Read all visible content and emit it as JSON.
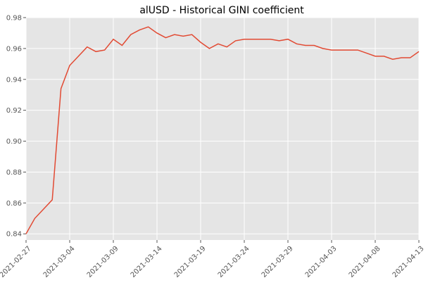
{
  "chart_data": {
    "type": "line",
    "title": "alUSD - Historical GINI coefficient",
    "xlabel": "",
    "ylabel": "",
    "grid": true,
    "line_color": "#e24a33",
    "background_color": "#e5e5e5",
    "grid_color": "#ffffff",
    "xlim": [
      "2021-02-27",
      "2021-04-13"
    ],
    "ylim": [
      0.836,
      0.98
    ],
    "x_ticks": [
      "2021-02-27",
      "2021-03-04",
      "2021-03-09",
      "2021-03-14",
      "2021-03-19",
      "2021-03-24",
      "2021-03-29",
      "2021-04-03",
      "2021-04-08",
      "2021-04-13"
    ],
    "y_ticks": [
      "0.84",
      "0.86",
      "0.88",
      "0.90",
      "0.92",
      "0.94",
      "0.96",
      "0.98"
    ],
    "series": [
      {
        "x": [
          "2021-02-27",
          "2021-02-28",
          "2021-03-01",
          "2021-03-02",
          "2021-03-03",
          "2021-03-04",
          "2021-03-05",
          "2021-03-06",
          "2021-03-07",
          "2021-03-08",
          "2021-03-09",
          "2021-03-10",
          "2021-03-11",
          "2021-03-12",
          "2021-03-13",
          "2021-03-14",
          "2021-03-15",
          "2021-03-16",
          "2021-03-17",
          "2021-03-18",
          "2021-03-19",
          "2021-03-20",
          "2021-03-21",
          "2021-03-22",
          "2021-03-23",
          "2021-03-24",
          "2021-03-25",
          "2021-03-26",
          "2021-03-27",
          "2021-03-28",
          "2021-03-29",
          "2021-03-30",
          "2021-03-31",
          "2021-04-01",
          "2021-04-02",
          "2021-04-03",
          "2021-04-04",
          "2021-04-05",
          "2021-04-06",
          "2021-04-07",
          "2021-04-08",
          "2021-04-09",
          "2021-04-10",
          "2021-04-11",
          "2021-04-12",
          "2021-04-13"
        ],
        "values": [
          0.84,
          0.85,
          0.856,
          0.862,
          0.934,
          0.949,
          0.955,
          0.961,
          0.958,
          0.959,
          0.966,
          0.962,
          0.969,
          0.972,
          0.974,
          0.97,
          0.967,
          0.969,
          0.968,
          0.969,
          0.964,
          0.96,
          0.963,
          0.961,
          0.965,
          0.966,
          0.966,
          0.966,
          0.966,
          0.965,
          0.966,
          0.963,
          0.962,
          0.962,
          0.96,
          0.959,
          0.959,
          0.959,
          0.959,
          0.957,
          0.955,
          0.955,
          0.953,
          0.954,
          0.954,
          0.958
        ]
      }
    ]
  }
}
